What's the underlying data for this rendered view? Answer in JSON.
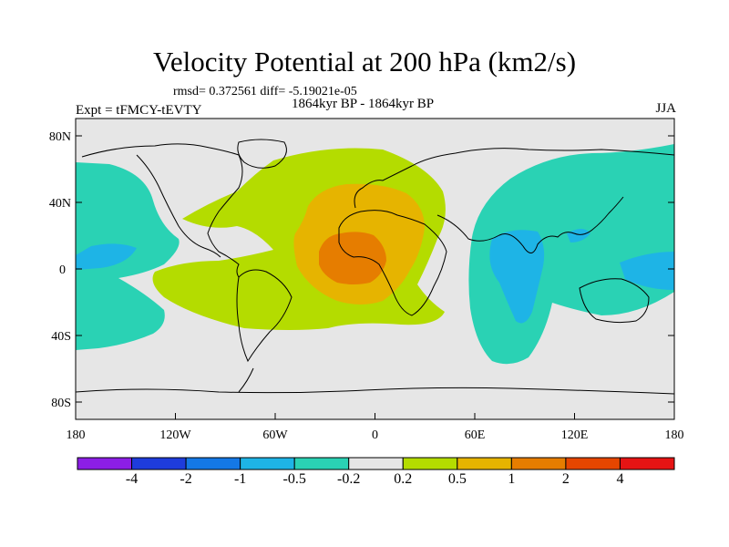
{
  "title": "Velocity Potential at 200 hPa (km2/s)",
  "stats": "rmsd= 0.372561 diff= -5.19021e-05",
  "period": "1864kyr BP - 1864kyr BP",
  "experiment": "Expt = tFMCY-tEVTY",
  "season": "JJA",
  "lat_labels": [
    "80N",
    "40N",
    "0",
    "40S",
    "80S"
  ],
  "lon_labels": [
    "180",
    "120W",
    "60W",
    "0",
    "60E",
    "120E",
    "180"
  ],
  "colorbar": {
    "colors": [
      "#8c1ee6",
      "#1e3cdc",
      "#1478e6",
      "#1eb4e6",
      "#2ad2b4",
      "#e6e6e6",
      "#b4dc00",
      "#e6b400",
      "#e67d00",
      "#e64600",
      "#e61414"
    ],
    "labels": [
      "-4",
      "-2",
      "-1",
      "-0.5",
      "-0.2",
      "0.2",
      "0.5",
      "1",
      "2",
      "4"
    ]
  },
  "colors": {
    "background": "#e6e6e6",
    "cyan": "#2ad2b4",
    "light_blue": "#1eb4e6",
    "yellow_green": "#b4dc00",
    "orange_yellow": "#e6b400",
    "orange": "#e67d00"
  }
}
